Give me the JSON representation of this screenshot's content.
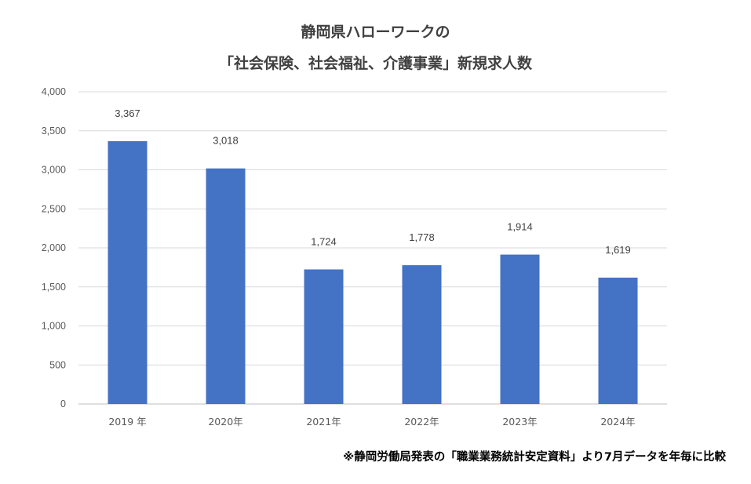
{
  "chart_data": {
    "type": "bar",
    "title": "静岡県ハローワークの",
    "subtitle": "「社会保険、社会福祉、介護事業」新規求人数",
    "categories": [
      "2019 年",
      "2020年",
      "2021年",
      "2022年",
      "2023年",
      "2024年"
    ],
    "values": [
      3367,
      3018,
      1724,
      1778,
      1914,
      1619
    ],
    "value_labels": [
      "3,367",
      "3,018",
      "1,724",
      "1,778",
      "1,914",
      "1,619"
    ],
    "ylim": [
      0,
      4000
    ],
    "ytick_values": [
      0,
      500,
      1000,
      1500,
      2000,
      2500,
      3000,
      3500,
      4000
    ],
    "yticks": [
      "0",
      "500",
      "1,000",
      "1,500",
      "2,000",
      "2,500",
      "3,000",
      "3,500",
      "4,000"
    ],
    "xlabel": "",
    "ylabel": "",
    "grid": true,
    "bar_color": "#4472C4",
    "grid_color": "#D9D9D9"
  },
  "footnote": "※静岡労働局発表の「職業業務統計安定資料」より7月データを年毎に比較"
}
